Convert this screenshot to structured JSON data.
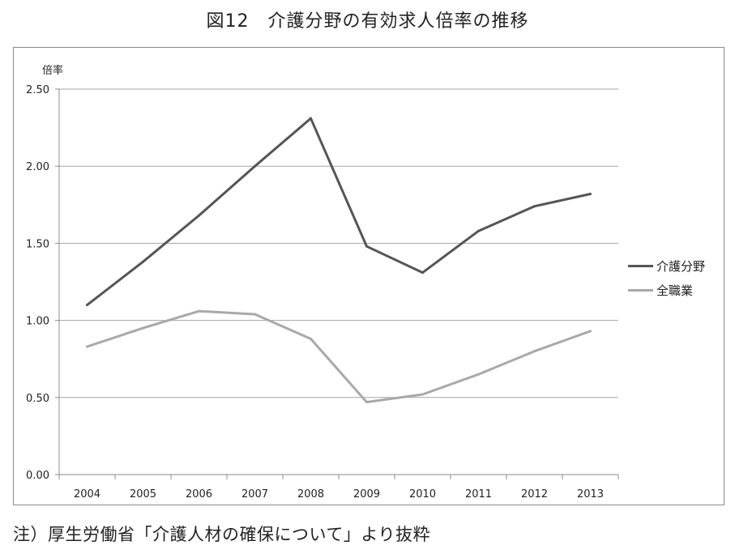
{
  "title": "図12　介護分野の有効求人倍率の推移",
  "note": "注）厚生労働省「介護人材の確保について」より抜粋",
  "chart_data": {
    "type": "line",
    "title": "図12　介護分野の有効求人倍率の推移",
    "ylabel": "倍率",
    "xlabel": "",
    "categories": [
      "2004",
      "2005",
      "2006",
      "2007",
      "2008",
      "2009",
      "2010",
      "2011",
      "2012",
      "2013"
    ],
    "ylim": [
      0,
      2.5
    ],
    "yticks": [
      0.0,
      0.5,
      1.0,
      1.5,
      2.0,
      2.5
    ],
    "ytick_labels": [
      "0.00",
      "0.50",
      "1.00",
      "1.50",
      "2.00",
      "2.50"
    ],
    "grid": true,
    "legend_position": "right",
    "series": [
      {
        "name": "介護分野",
        "color": "#555555",
        "values": [
          1.1,
          1.38,
          1.68,
          2.0,
          2.31,
          1.48,
          1.31,
          1.58,
          1.74,
          1.82
        ]
      },
      {
        "name": "全職業",
        "color": "#a9a9a9",
        "values": [
          0.83,
          0.95,
          1.06,
          1.04,
          0.88,
          0.47,
          0.52,
          0.65,
          0.8,
          0.93
        ]
      }
    ]
  }
}
